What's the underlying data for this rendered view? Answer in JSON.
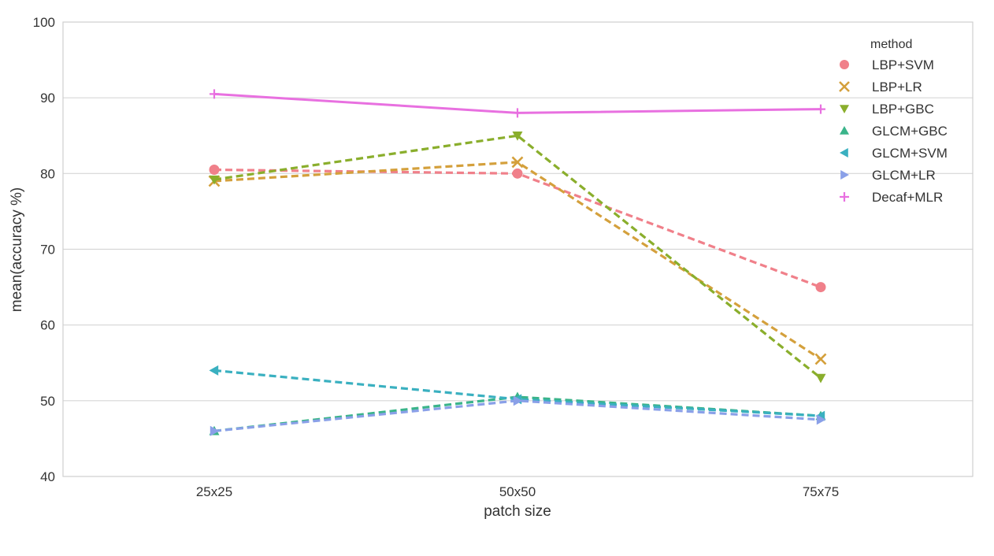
{
  "chart_data": {
    "type": "line",
    "xlabel": "patch size",
    "ylabel": "mean(accuracy %)",
    "categories": [
      "25x25",
      "50x50",
      "75x75"
    ],
    "ylim": [
      40,
      100
    ],
    "yticks": [
      40,
      50,
      60,
      70,
      80,
      90,
      100
    ],
    "grid": true,
    "legend": {
      "title": "method",
      "placement": "top-right"
    },
    "series": [
      {
        "name": "LBP+SVM",
        "values": [
          80.5,
          80.0,
          65.0
        ],
        "color": "#f0808a",
        "marker": "circle",
        "linestyle": "dashed"
      },
      {
        "name": "LBP+LR",
        "values": [
          79.0,
          81.5,
          55.5
        ],
        "color": "#d4a03c",
        "marker": "x",
        "linestyle": "dashed"
      },
      {
        "name": "LBP+GBC",
        "values": [
          79.2,
          85.0,
          53.0
        ],
        "color": "#8aae2c",
        "marker": "triangle-down",
        "linestyle": "dashed"
      },
      {
        "name": "GLCM+GBC",
        "values": [
          46.0,
          50.5,
          48.0
        ],
        "color": "#3ab48a",
        "marker": "triangle-up",
        "linestyle": "dashed"
      },
      {
        "name": "GLCM+SVM",
        "values": [
          54.0,
          50.2,
          48.0
        ],
        "color": "#3ab0c0",
        "marker": "triangle-left",
        "linestyle": "dashed"
      },
      {
        "name": "GLCM+LR",
        "values": [
          46.0,
          50.0,
          47.5
        ],
        "color": "#8aa0e8",
        "marker": "triangle-right",
        "linestyle": "dashed"
      },
      {
        "name": "Decaf+MLR",
        "values": [
          90.5,
          88.0,
          88.5
        ],
        "color": "#e870e0",
        "marker": "plus",
        "linestyle": "solid"
      }
    ]
  }
}
